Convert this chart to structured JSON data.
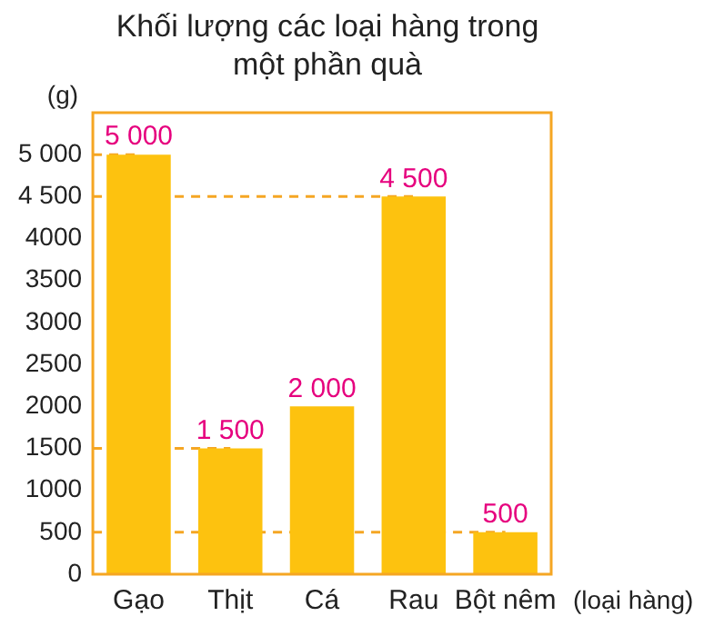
{
  "chart_data": {
    "type": "bar",
    "title": "Khối lượng các loại hàng trong một phần quà",
    "ylabel": "(g)",
    "xlabel": "(loại hàng)",
    "categories": [
      "Gạo",
      "Thịt",
      "Cá",
      "Rau",
      "Bột nêm"
    ],
    "values": [
      5000,
      1500,
      2000,
      4500,
      500
    ],
    "value_labels": [
      "5 000",
      "1 500",
      "2 000",
      "4 500",
      "500"
    ],
    "color": "#fdc20f",
    "ylim": [
      0,
      5500
    ],
    "yticks": [
      0,
      500,
      1000,
      1500,
      2000,
      2500,
      3000,
      3500,
      4000,
      {
        "value": 4500,
        "label": "4 500"
      },
      {
        "value": 5000,
        "label": "5 000"
      }
    ],
    "ref_lines": [
      {
        "axis": "y",
        "value": 5000,
        "color": "#f5a623",
        "line_style": "dashed"
      },
      {
        "axis": "y",
        "value": 4500,
        "color": "#f5a623",
        "line_style": "dashed"
      },
      {
        "axis": "y",
        "value": 1500,
        "color": "#f5a623",
        "line_style": "dashed"
      },
      {
        "axis": "y",
        "value": 500,
        "color": "#f5a623",
        "line_style": "dashed"
      }
    ],
    "grid": false,
    "legend": false
  }
}
